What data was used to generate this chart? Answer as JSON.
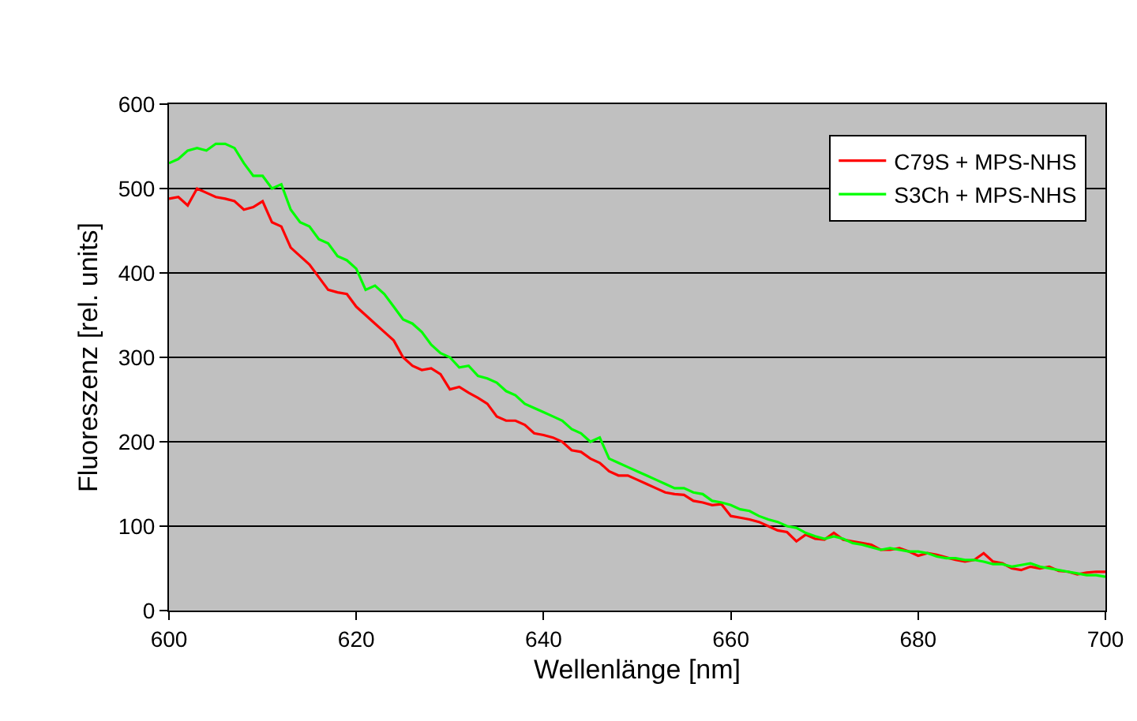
{
  "chart_data": {
    "type": "line",
    "xlabel": "Wellenlänge [nm]",
    "ylabel": "Fluoreszenz [rel. units]",
    "x": [
      600,
      601,
      602,
      603,
      604,
      605,
      606,
      607,
      608,
      609,
      610,
      611,
      612,
      613,
      614,
      615,
      616,
      617,
      618,
      619,
      620,
      621,
      622,
      623,
      624,
      625,
      626,
      627,
      628,
      629,
      630,
      631,
      632,
      633,
      634,
      635,
      636,
      637,
      638,
      639,
      640,
      641,
      642,
      643,
      644,
      645,
      646,
      647,
      648,
      649,
      650,
      651,
      652,
      653,
      654,
      655,
      656,
      657,
      658,
      659,
      660,
      661,
      662,
      663,
      664,
      665,
      666,
      667,
      668,
      669,
      670,
      671,
      672,
      673,
      674,
      675,
      676,
      677,
      678,
      679,
      680,
      681,
      682,
      683,
      684,
      685,
      686,
      687,
      688,
      689,
      690,
      691,
      692,
      693,
      694,
      695,
      696,
      697,
      698,
      699,
      700
    ],
    "series": [
      {
        "name": "C79S + MPS-NHS",
        "color": "#ff0000",
        "values": [
          488,
          490,
          480,
          500,
          495,
          490,
          488,
          485,
          475,
          478,
          485,
          460,
          455,
          430,
          420,
          410,
          395,
          380,
          377,
          375,
          360,
          350,
          340,
          330,
          320,
          300,
          290,
          285,
          287,
          280,
          262,
          265,
          258,
          252,
          245,
          230,
          225,
          225,
          220,
          210,
          208,
          205,
          200,
          190,
          188,
          180,
          175,
          165,
          160,
          160,
          155,
          150,
          145,
          140,
          138,
          137,
          130,
          128,
          125,
          126,
          112,
          110,
          108,
          105,
          100,
          95,
          93,
          82,
          90,
          85,
          84,
          92,
          84,
          82,
          80,
          78,
          72,
          72,
          74,
          70,
          65,
          68,
          66,
          63,
          60,
          58,
          60,
          68,
          58,
          56,
          50,
          48,
          52,
          50,
          52,
          47,
          46,
          43,
          45,
          46,
          46
        ]
      },
      {
        "name": "S3Ch + MPS-NHS",
        "color": "#00ff00",
        "values": [
          530,
          535,
          545,
          548,
          545,
          553,
          553,
          548,
          530,
          515,
          515,
          500,
          505,
          475,
          460,
          455,
          440,
          435,
          420,
          415,
          405,
          380,
          385,
          375,
          360,
          345,
          340,
          330,
          315,
          305,
          300,
          288,
          290,
          278,
          275,
          270,
          260,
          255,
          245,
          240,
          235,
          230,
          225,
          215,
          210,
          200,
          205,
          180,
          175,
          170,
          165,
          160,
          155,
          150,
          145,
          145,
          140,
          138,
          130,
          128,
          125,
          120,
          118,
          112,
          108,
          105,
          100,
          98,
          92,
          88,
          85,
          88,
          85,
          80,
          78,
          75,
          72,
          74,
          72,
          70,
          70,
          68,
          64,
          62,
          62,
          60,
          60,
          58,
          55,
          55,
          52,
          54,
          56,
          52,
          50,
          48,
          46,
          44,
          42,
          42,
          40
        ]
      }
    ],
    "xlim": [
      600,
      700
    ],
    "xticks": [
      600,
      620,
      640,
      660,
      680,
      700
    ],
    "ylim": [
      0,
      600
    ],
    "yticks": [
      0,
      100,
      200,
      300,
      400,
      500,
      600
    ],
    "grid": "y",
    "legend": "top right",
    "marker": "none",
    "line_style": "solid"
  }
}
